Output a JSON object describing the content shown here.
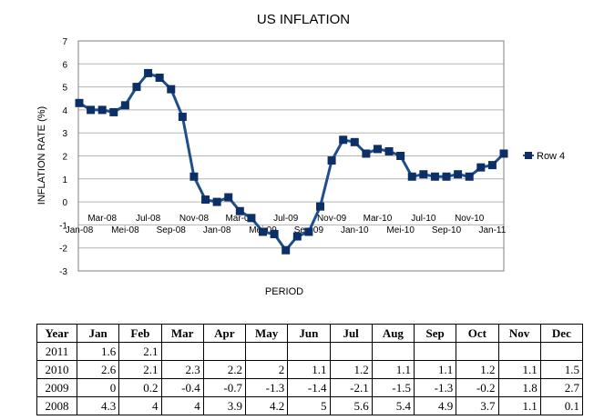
{
  "chart_data": {
    "type": "line",
    "title": "US INFLATION",
    "xlabel": "PERIOD",
    "ylabel": "INFLATION RATE (%)",
    "ylim": [
      -3,
      7
    ],
    "yticks": [
      "7",
      "6",
      "5",
      "4",
      "3",
      "2",
      "1",
      "0",
      "-1",
      "-2",
      "-3"
    ],
    "grid": true,
    "legend_position": "right",
    "x_tick_labels_upper": [
      "Mar-08",
      "Jul-08",
      "Nov-08",
      "Mar-09",
      "Jul-09",
      "Nov-09",
      "Mar-10",
      "Jul-10",
      "Nov-10"
    ],
    "x_tick_labels_lower": [
      "Jan-08",
      "Mei-08",
      "Sep-08",
      "Jan-08",
      "Mei-09",
      "Sep-09",
      "Jan-10",
      "Mei-10",
      "Sep-10",
      "Jan-11"
    ],
    "series": [
      {
        "name": "Row 4",
        "color": "#1f4e8c",
        "marker_color": "#0b2f66",
        "values": [
          4.3,
          4.0,
          4.0,
          3.9,
          4.2,
          5.0,
          5.6,
          5.4,
          4.9,
          3.7,
          1.1,
          0.1,
          0.0,
          0.2,
          -0.4,
          -0.7,
          -1.3,
          -1.4,
          -2.1,
          -1.5,
          -1.3,
          -0.2,
          1.8,
          2.7,
          2.6,
          2.1,
          2.3,
          2.2,
          2.0,
          1.1,
          1.2,
          1.1,
          1.1,
          1.2,
          1.1,
          1.5,
          1.6,
          2.1
        ]
      }
    ]
  },
  "table": {
    "headers": [
      "Year",
      "Jan",
      "Feb",
      "Mar",
      "Apr",
      "May",
      "Jun",
      "Jul",
      "Aug",
      "Sep",
      "Oct",
      "Nov",
      "Dec"
    ],
    "rows": [
      [
        "2011",
        "1.6",
        "2.1",
        "",
        "",
        "",
        "",
        "",
        "",
        "",
        "",
        "",
        ""
      ],
      [
        "2010",
        "2.6",
        "2.1",
        "2.3",
        "2.2",
        "2",
        "1.1",
        "1.2",
        "1.1",
        "1.1",
        "1.2",
        "1.1",
        "1.5"
      ],
      [
        "2009",
        "0",
        "0.2",
        "-0.4",
        "-0.7",
        "-1.3",
        "-1.4",
        "-2.1",
        "-1.5",
        "-1.3",
        "-0.2",
        "1.8",
        "2.7"
      ],
      [
        "2008",
        "4.3",
        "4",
        "4",
        "3.9",
        "4.2",
        "5",
        "5.6",
        "5.4",
        "4.9",
        "3.7",
        "1.1",
        "0.1"
      ]
    ]
  }
}
